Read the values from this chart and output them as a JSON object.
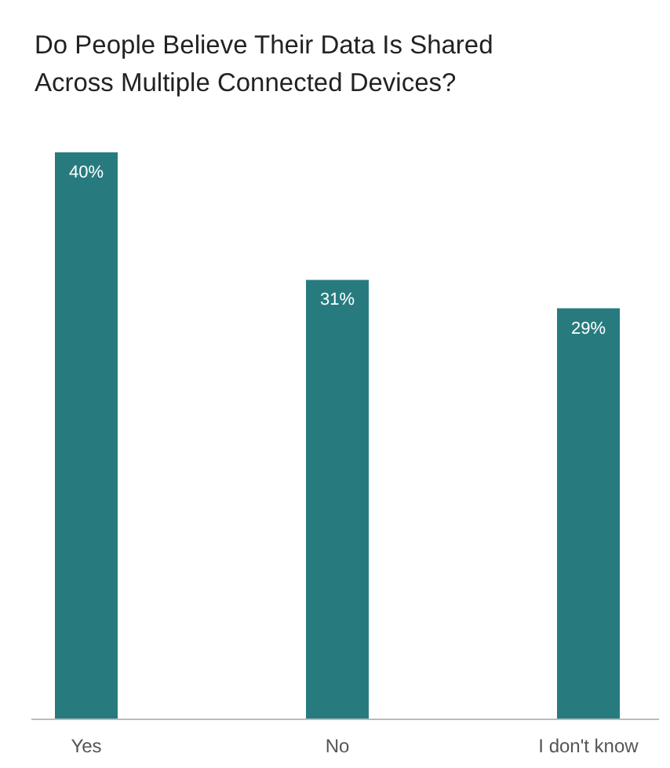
{
  "chart_data": {
    "type": "bar",
    "title": "Do People Believe Their Data Is Shared Across Multiple Connected Devices?",
    "categories": [
      "Yes",
      "No",
      "I don't know"
    ],
    "values": [
      40,
      31,
      29
    ],
    "value_labels": [
      "40%",
      "31%",
      "29%"
    ],
    "color": "#277b7f",
    "grid": false
  }
}
